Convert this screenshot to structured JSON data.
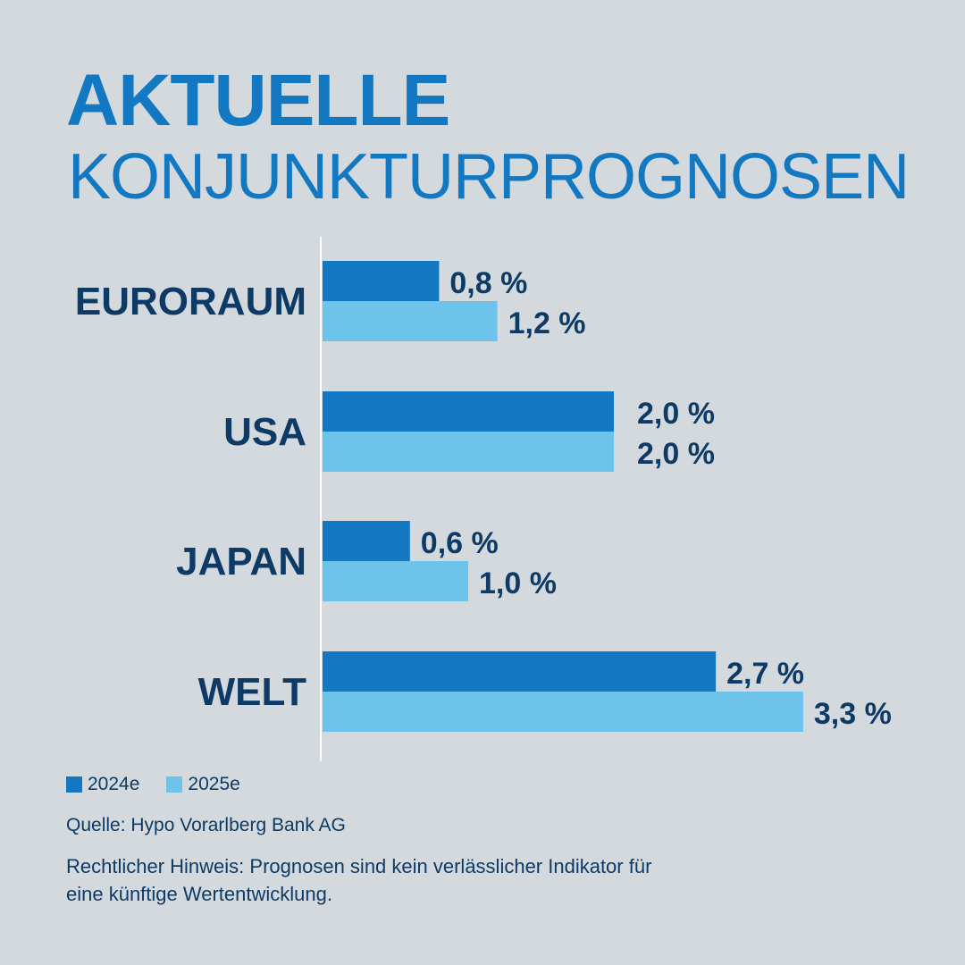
{
  "title": {
    "main": "AKTUELLE",
    "sub": "KONJUNKTURPROGNOSEN"
  },
  "colors": {
    "series_2024": "#1278c2",
    "series_2025": "#6ec3ea",
    "text": "#0d3b66",
    "background": "#d4d9de"
  },
  "chart_data": {
    "type": "bar",
    "orientation": "horizontal",
    "categories": [
      "EURORAUM",
      "USA",
      "JAPAN",
      "WELT"
    ],
    "series": [
      {
        "name": "2024e",
        "values": [
          0.8,
          2.0,
          0.6,
          2.7
        ],
        "labels": [
          "0,8 %",
          "2,0 %",
          "0,6 %",
          "2,7 %"
        ]
      },
      {
        "name": "2025e",
        "values": [
          1.2,
          2.0,
          1.0,
          3.3
        ],
        "labels": [
          "1,2 %",
          "2,0 %",
          "1,0 %",
          "3,3 %"
        ]
      }
    ],
    "legend_position": "bottom-left",
    "grid": false
  },
  "legend": {
    "item_2024": "2024e",
    "item_2025": "2025e"
  },
  "source": "Quelle: Hypo Vorarlberg Bank AG",
  "note_line1": "Rechtlicher Hinweis: Prognosen sind kein verlässlicher Indikator für",
  "note_line2": "eine künftige Wertentwicklung."
}
